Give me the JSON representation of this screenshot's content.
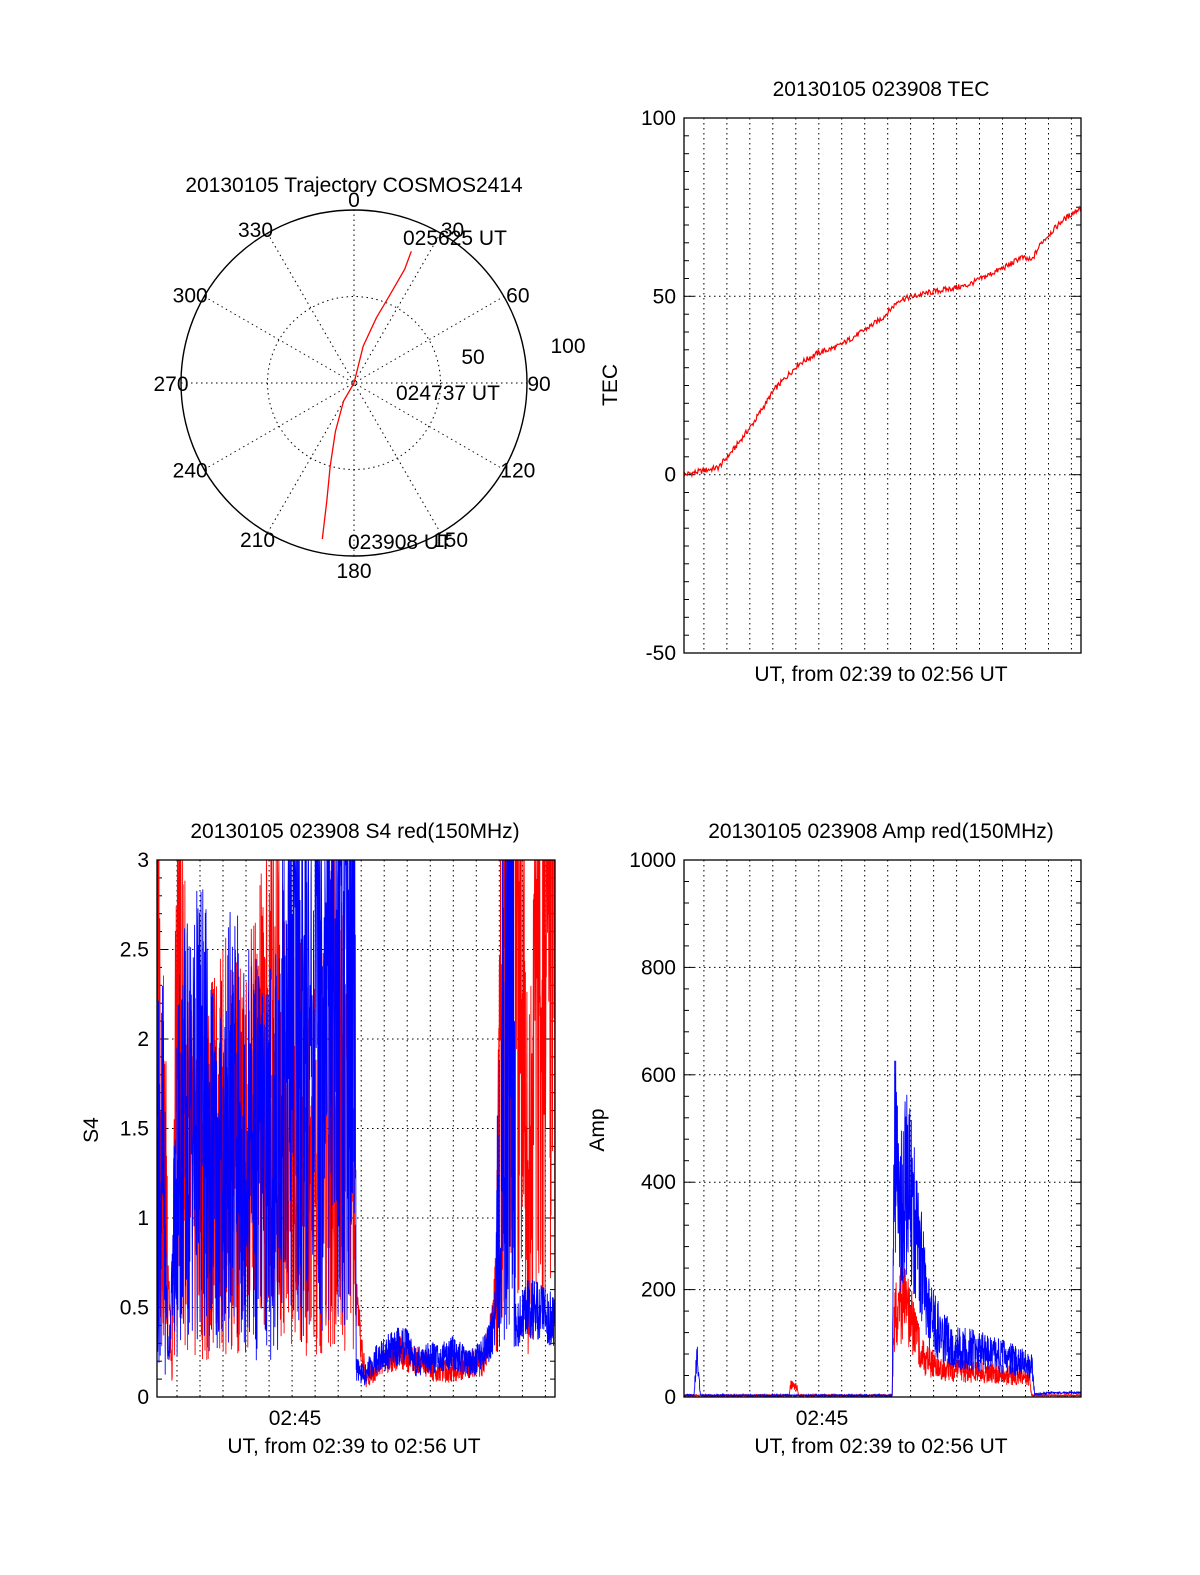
{
  "chart_data": [
    {
      "type": "polar",
      "title": "20130105 Trajectory COSMOS2414",
      "angle_labels": [
        "0",
        "30",
        "60",
        "90",
        "120",
        "150",
        "180",
        "210",
        "240",
        "270",
        "300",
        "330"
      ],
      "radius_labels": [
        "50",
        "100"
      ],
      "rlim": [
        0,
        100
      ],
      "grid": true,
      "series": [
        {
          "color": "#ff0000",
          "points": [
            {
              "az": 191.5,
              "zen": 92
            },
            {
              "az": 193,
              "zen": 70
            },
            {
              "az": 196,
              "zen": 50
            },
            {
              "az": 201,
              "zen": 30
            },
            {
              "az": 210,
              "zen": 12
            },
            {
              "az": 78,
              "zen": 0
            },
            {
              "az": 14,
              "zen": 22
            },
            {
              "az": 19,
              "zen": 40
            },
            {
              "az": 22,
              "zen": 54
            },
            {
              "az": 24,
              "zen": 72
            },
            {
              "az": 23.5,
              "zen": 83
            }
          ]
        }
      ],
      "annotations": [
        "025625 UT",
        "024737 UT",
        "023908 UT"
      ]
    },
    {
      "type": "line",
      "title": "20130105 023908 TEC",
      "xlabel": "UT, from 02:39 to 02:56 UT",
      "ylabel": "TEC",
      "x_range": [
        "02:39:08",
        "02:56:25"
      ],
      "ylim": [
        -50,
        100
      ],
      "yticks": [
        "-50",
        "0",
        "50",
        "100"
      ],
      "grid": true,
      "series": [
        {
          "color": "#ff0000",
          "x": [
            "02:39:08",
            "02:40:38",
            "02:41:17",
            "02:42:06",
            "02:43:05",
            "02:44:07",
            "02:44:56",
            "02:45:51",
            "02:46:52",
            "02:47:47",
            "02:48:30",
            "02:49:46",
            "02:51:26",
            "02:52:43",
            "02:53:22",
            "02:53:47",
            "02:54:16",
            "02:54:41",
            "02:55:34",
            "02:56:25"
          ],
          "values": [
            0,
            2,
            7,
            14,
            24,
            31,
            34,
            36,
            40,
            44,
            49,
            51,
            53,
            57,
            59,
            61,
            60,
            65,
            71,
            75
          ]
        }
      ]
    },
    {
      "type": "line",
      "title": "20130105 023908 S4 red(150MHz)",
      "xlabel": "UT, from 02:39 to 02:56 UT",
      "ylabel": "S4",
      "x_range": [
        "02:39:08",
        "02:56:25"
      ],
      "xticks": [
        "02:45"
      ],
      "ylim": [
        0,
        3
      ],
      "yticks": [
        "0",
        "0.5",
        "1",
        "1.5",
        "2",
        "2.5",
        "3"
      ],
      "grid": true,
      "series": [
        {
          "color": "#ff0000",
          "x": [
            "02:39:08",
            "02:39:21",
            "02:39:34",
            "02:39:47",
            "02:40:04",
            "02:40:26",
            "02:41:17",
            "02:42:06",
            "02:42:54",
            "02:43:37",
            "02:44:24",
            "02:44:46",
            "02:45:08",
            "02:45:51",
            "02:46:31",
            "02:47:07",
            "02:47:36",
            "02:47:47",
            "02:48:12",
            "02:48:53",
            "02:49:37",
            "02:50:28",
            "02:51:14",
            "02:51:57",
            "02:52:34",
            "02:53:20",
            "02:53:47",
            "02:54:11",
            "02:54:41",
            "02:55:19",
            "02:55:56",
            "02:56:25"
          ],
          "values": [
            2.5,
            1.4,
            1.0,
            0.1,
            2.8,
            1.3,
            1.2,
            1.4,
            1.3,
            1.6,
            2.2,
            1.2,
            1.5,
            1.3,
            1.6,
            1.8,
            1.3,
            0.5,
            0.1,
            0.2,
            0.25,
            0.2,
            0.15,
            0.15,
            0.18,
            0.2,
            0.5,
            2.5,
            2.8,
            1.2,
            2.9,
            3.0
          ]
        },
        {
          "color": "#0000ff",
          "x": [
            "02:39:08",
            "02:39:23",
            "02:39:38",
            "02:40:04",
            "02:40:26",
            "02:41:05",
            "02:41:41",
            "02:42:20",
            "02:43:05",
            "02:43:47",
            "02:44:24",
            "02:44:58",
            "02:45:29",
            "02:46:07",
            "02:46:47",
            "02:47:22",
            "02:47:44",
            "02:47:47",
            "02:48:07",
            "02:48:36",
            "02:49:07",
            "02:49:51",
            "02:50:21",
            "02:51:12",
            "02:51:57",
            "02:52:43",
            "02:53:22",
            "02:53:47",
            "02:54:16",
            "02:54:36",
            "02:54:41",
            "02:55:19",
            "02:56:04",
            "02:56:25"
          ],
          "values": [
            1.2,
            1.3,
            0.2,
            1.4,
            1.5,
            1.6,
            1.2,
            1.5,
            1.4,
            1.3,
            1.4,
            2.5,
            1.8,
            2.2,
            2.5,
            2.6,
            2.6,
            0.15,
            0.12,
            0.2,
            0.25,
            0.3,
            0.2,
            0.22,
            0.25,
            0.18,
            0.25,
            0.4,
            2.3,
            3.0,
            0.4,
            0.5,
            0.45,
            0.42
          ]
        }
      ]
    },
    {
      "type": "line",
      "title": "20130105 023908 Amp red(150MHz)",
      "xlabel": "UT, from 02:39 to 02:56 UT",
      "ylabel": "Amp",
      "x_range": [
        "02:39:08",
        "02:56:25"
      ],
      "xticks": [
        "02:45"
      ],
      "ylim": [
        0,
        1000
      ],
      "yticks": [
        "0",
        "200",
        "400",
        "600",
        "800",
        "1000"
      ],
      "grid": true,
      "series": [
        {
          "color": "#ff0000",
          "x": [
            "02:39:08",
            "02:43:42",
            "02:43:47",
            "02:44:02",
            "02:44:07",
            "02:48:12",
            "02:48:17",
            "02:48:36",
            "02:49:07",
            "02:49:37",
            "02:50:08",
            "02:50:59",
            "02:52:05",
            "02:53:30",
            "02:54:11",
            "02:54:16",
            "02:56:25"
          ],
          "values": [
            3,
            3,
            22,
            22,
            3,
            3,
            150,
            180,
            130,
            70,
            55,
            50,
            45,
            40,
            35,
            3,
            3
          ]
        },
        {
          "color": "#0000ff",
          "x": [
            "02:39:08",
            "02:39:34",
            "02:39:42",
            "02:39:51",
            "02:43:00",
            "02:48:12",
            "02:48:17",
            "02:48:30",
            "02:48:53",
            "02:49:20",
            "02:49:46",
            "02:50:21",
            "02:51:14",
            "02:52:01",
            "02:52:48",
            "02:53:30",
            "02:54:16",
            "02:54:24",
            "02:55:05",
            "02:56:25"
          ],
          "values": [
            3,
            3,
            75,
            3,
            3,
            3,
            480,
            320,
            420,
            280,
            160,
            110,
            90,
            85,
            75,
            70,
            60,
            5,
            8,
            8
          ]
        }
      ]
    }
  ]
}
